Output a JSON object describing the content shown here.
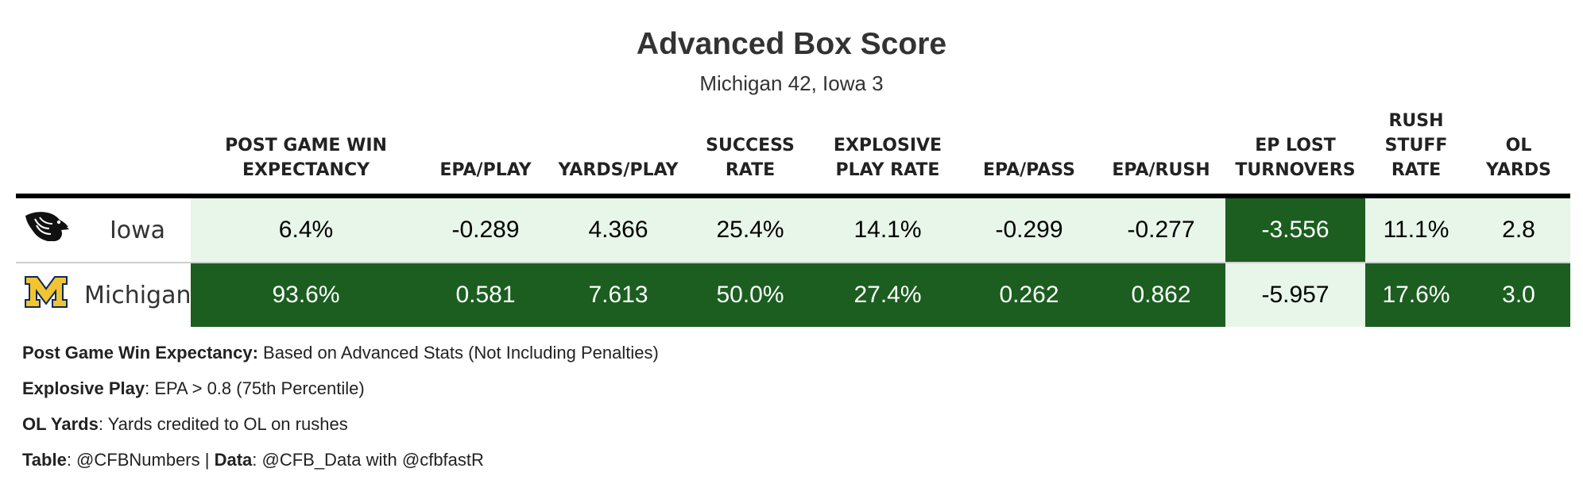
{
  "title": "Advanced Box Score",
  "subtitle": "Michigan 42, Iowa 3",
  "colors": {
    "light": "#e8f5e9",
    "dark": "#1b5e20",
    "dark_text": "#ffffff",
    "light_text": "#000000"
  },
  "chart_data": {
    "type": "table",
    "columns": [
      "POST GAME WIN EXPECTANCY",
      "EPA/PLAY",
      "YARDS/PLAY",
      "SUCCESS RATE",
      "EXPLOSIVE PLAY RATE",
      "EPA/PASS",
      "EPA/RUSH",
      "EP LOST TURNOVERS",
      "RUSH STUFF RATE",
      "OL YARDS"
    ],
    "column_lines": [
      [
        "POST GAME WIN",
        "EXPECTANCY"
      ],
      [
        "EPA/PLAY"
      ],
      [
        "YARDS/PLAY"
      ],
      [
        "SUCCESS",
        "RATE"
      ],
      [
        "EXPLOSIVE",
        "PLAY RATE"
      ],
      [
        "EPA/PASS"
      ],
      [
        "EPA/RUSH"
      ],
      [
        "EP LOST",
        "TURNOVERS"
      ],
      [
        "RUSH",
        "STUFF",
        "RATE"
      ],
      [
        "OL",
        "YARDS"
      ]
    ],
    "rows": [
      {
        "team": "Iowa",
        "logo": "iowa-hawkeye-logo",
        "values": [
          "6.4%",
          "-0.289",
          "4.366",
          "25.4%",
          "14.1%",
          "-0.299",
          "-0.277",
          "-3.556",
          "11.1%",
          "2.8"
        ],
        "shade": [
          "light",
          "light",
          "light",
          "light",
          "light",
          "light",
          "light",
          "dark",
          "light",
          "light"
        ]
      },
      {
        "team": "Michigan",
        "logo": "michigan-block-m-logo",
        "values": [
          "93.6%",
          "0.581",
          "7.613",
          "50.0%",
          "27.4%",
          "0.262",
          "0.862",
          "-5.957",
          "17.6%",
          "3.0"
        ],
        "shade": [
          "dark",
          "dark",
          "dark",
          "dark",
          "dark",
          "dark",
          "dark",
          "light",
          "dark",
          "dark"
        ]
      }
    ]
  },
  "notes": [
    {
      "label": "Post Game Win Expectancy:",
      "text": " Based on Advanced Stats (Not Including Penalties)"
    },
    {
      "label": "Explosive Play",
      "text": ": EPA > 0.8 (75th Percentile)"
    },
    {
      "label": "OL Yards",
      "text": ": Yards credited to OL on rushes"
    },
    {
      "label": "Table",
      "text": ": @CFBNumbers | ",
      "label2": "Data",
      "text2": ": @CFB_Data with @cfbfastR"
    }
  ]
}
